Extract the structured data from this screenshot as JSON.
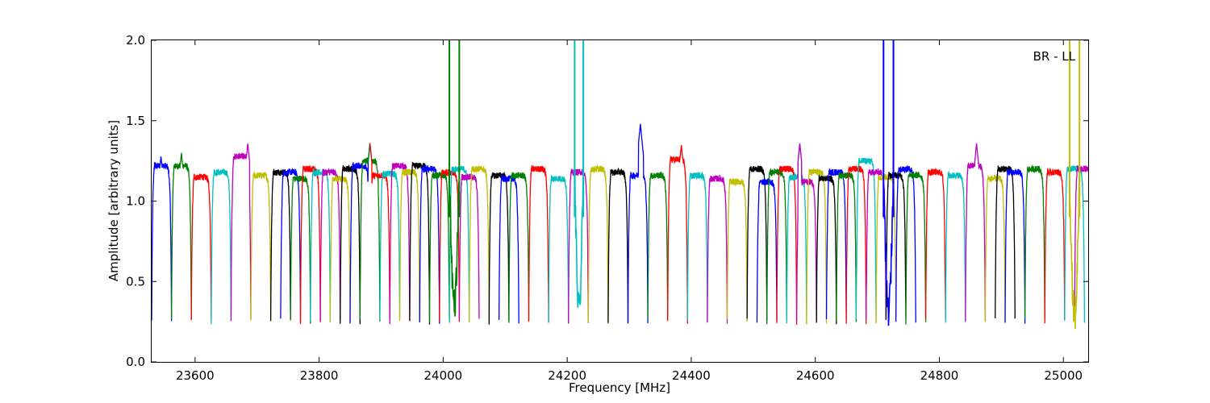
{
  "chart_data": {
    "type": "line",
    "title": "",
    "annotation": "BR - LL",
    "xlabel": "Frequency [MHz]",
    "ylabel": "Amplitude [arbitrary units]",
    "xlim": [
      23530,
      25040
    ],
    "ylim": [
      0.0,
      2.0
    ],
    "xticks": [
      23600,
      23800,
      24000,
      24200,
      24400,
      24600,
      24800,
      25000
    ],
    "yticks": [
      0.0,
      0.5,
      1.0,
      1.5,
      2.0
    ],
    "ytick_labels": [
      "0.0",
      "0.5",
      "1.0",
      "1.5",
      "2.0"
    ],
    "grid": false,
    "legend": "none",
    "colors": {
      "b": "#0000ff",
      "g": "#008000",
      "r": "#ff0000",
      "c": "#00bfbf",
      "m": "#bf00bf",
      "y": "#bfbf00",
      "k": "#000000",
      "gray": "#b0b0b0"
    },
    "color_cycle": [
      "b",
      "g",
      "r",
      "c",
      "m",
      "y",
      "k"
    ],
    "channel_width_mhz": 32,
    "channel_starts_mhz": [
      23530,
      23562,
      23594,
      23626,
      23658,
      23690,
      23722,
      23738,
      23754,
      23770,
      23786,
      23802,
      23818,
      23834,
      23850,
      23866,
      23882,
      23898,
      23914,
      23930,
      23946,
      23962,
      23978,
      23994,
      24010,
      24026,
      24042,
      24074,
      24090,
      24106,
      24138,
      24170,
      24202,
      24234,
      24266,
      24298,
      24330,
      24362,
      24394,
      24426,
      24458,
      24490,
      24506,
      24522,
      24538,
      24554,
      24570,
      24586,
      24602,
      24618,
      24634,
      24650,
      24666,
      24682,
      24698,
      24714,
      24730,
      24746,
      24778,
      24810,
      24842,
      24874,
      24890,
      24906,
      24938,
      24970,
      25002,
      25018
    ],
    "channel_levels": [
      1.22,
      1.22,
      1.15,
      1.18,
      1.28,
      1.16,
      1.18,
      1.18,
      1.14,
      1.2,
      1.18,
      1.18,
      1.14,
      1.2,
      1.22,
      1.25,
      1.16,
      1.17,
      1.22,
      1.18,
      1.22,
      1.2,
      1.16,
      1.18,
      1.2,
      1.15,
      1.2,
      1.16,
      1.14,
      1.16,
      1.2,
      1.14,
      1.18,
      1.2,
      1.18,
      1.16,
      1.16,
      1.26,
      1.16,
      1.14,
      1.12,
      1.2,
      1.12,
      1.18,
      1.2,
      1.15,
      1.12,
      1.18,
      1.14,
      1.18,
      1.16,
      1.2,
      1.25,
      1.18,
      1.15,
      1.16,
      1.2,
      1.16,
      1.18,
      1.16,
      1.22,
      1.14,
      1.2,
      1.18,
      1.2,
      1.18,
      1.2,
      1.2
    ],
    "dips": [
      {
        "x": 23530,
        "min": 0.24
      },
      {
        "x": 23562,
        "min": 0.24
      },
      {
        "x": 23594,
        "min": 0.25
      },
      {
        "x": 23626,
        "min": 0.3
      },
      {
        "x": 23658,
        "min": 0.3
      },
      {
        "x": 23690,
        "min": 0.3
      },
      {
        "x": 23722,
        "min": 0.28
      },
      {
        "x": 23738,
        "min": 0.24
      },
      {
        "x": 23754,
        "min": 0.28
      },
      {
        "x": 23770,
        "min": 0.25
      },
      {
        "x": 23786,
        "min": 0.26
      },
      {
        "x": 23802,
        "min": 0.28
      },
      {
        "x": 23818,
        "min": 0.3
      },
      {
        "x": 23834,
        "min": 0.3
      },
      {
        "x": 23850,
        "min": 0.3
      },
      {
        "x": 23866,
        "min": 0.3
      },
      {
        "x": 23882,
        "min": 0.3
      },
      {
        "x": 23898,
        "min": 0.28
      },
      {
        "x": 23914,
        "min": 0.3
      },
      {
        "x": 23930,
        "min": 0.3
      },
      {
        "x": 23946,
        "min": 0.28
      },
      {
        "x": 23962,
        "min": 0.3
      },
      {
        "x": 23978,
        "min": 0.28
      },
      {
        "x": 23994,
        "min": 0.28
      },
      {
        "x": 24026,
        "min": 0.36
      },
      {
        "x": 24042,
        "min": 0.3
      },
      {
        "x": 24074,
        "min": 0.3
      },
      {
        "x": 24090,
        "min": 0.3
      },
      {
        "x": 24106,
        "min": 0.28
      },
      {
        "x": 24138,
        "min": 0.28
      },
      {
        "x": 24170,
        "min": 0.28
      },
      {
        "x": 24220,
        "min": 0.32
      },
      {
        "x": 24234,
        "min": 0.25
      },
      {
        "x": 24266,
        "min": 0.3
      },
      {
        "x": 24298,
        "min": 0.3
      },
      {
        "x": 24330,
        "min": 0.3
      },
      {
        "x": 24362,
        "min": 0.3
      },
      {
        "x": 24394,
        "min": 0.3
      },
      {
        "x": 24426,
        "min": 0.3
      },
      {
        "x": 24458,
        "min": 0.3
      },
      {
        "x": 24490,
        "min": 0.3
      },
      {
        "x": 24522,
        "min": 0.24
      },
      {
        "x": 24538,
        "min": 0.28
      },
      {
        "x": 24554,
        "min": 0.26
      },
      {
        "x": 24570,
        "min": 0.24
      },
      {
        "x": 24586,
        "min": 0.25
      },
      {
        "x": 24602,
        "min": 0.28
      },
      {
        "x": 24618,
        "min": 0.3
      },
      {
        "x": 24634,
        "min": 0.3
      },
      {
        "x": 24650,
        "min": 0.28
      },
      {
        "x": 24666,
        "min": 0.28
      },
      {
        "x": 24682,
        "min": 0.3
      },
      {
        "x": 24698,
        "min": 0.3
      },
      {
        "x": 24720,
        "min": 0.32
      },
      {
        "x": 24746,
        "min": 0.3
      },
      {
        "x": 24778,
        "min": 0.3
      },
      {
        "x": 24810,
        "min": 0.3
      },
      {
        "x": 24842,
        "min": 0.28
      },
      {
        "x": 24874,
        "min": 0.3
      },
      {
        "x": 24890,
        "min": 0.3
      },
      {
        "x": 24906,
        "min": 0.3
      },
      {
        "x": 24938,
        "min": 0.3
      },
      {
        "x": 24970,
        "min": 0.3
      },
      {
        "x": 25022,
        "min": 0.28
      }
    ],
    "spikes": [
      {
        "x": 24010,
        "color": "g"
      },
      {
        "x": 24026,
        "color": "g"
      },
      {
        "x": 24212,
        "color": "c"
      },
      {
        "x": 24226,
        "color": "c"
      },
      {
        "x": 24710,
        "color": "b"
      },
      {
        "x": 24726,
        "color": "b"
      },
      {
        "x": 25010,
        "color": "y"
      },
      {
        "x": 25026,
        "color": "y"
      }
    ],
    "peaks": [
      {
        "x": 23545,
        "y": 1.28
      },
      {
        "x": 23578,
        "y": 1.3
      },
      {
        "x": 23685,
        "y": 1.36
      },
      {
        "x": 23882,
        "y": 1.36
      },
      {
        "x": 24318,
        "y": 1.48
      },
      {
        "x": 24320,
        "y": 1.4
      },
      {
        "x": 24384,
        "y": 1.35
      },
      {
        "x": 24575,
        "y": 1.36
      },
      {
        "x": 24860,
        "y": 1.36
      }
    ]
  }
}
